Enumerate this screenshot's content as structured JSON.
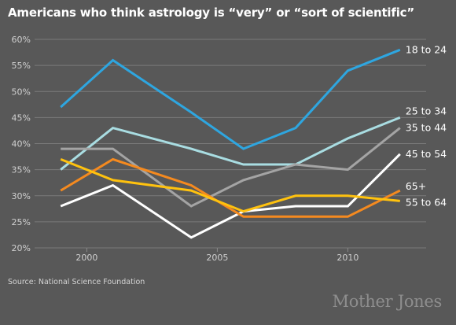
{
  "title": "Americans who think astrology is “very” or “sort of scientific”",
  "source": "Source: National Science Foundation",
  "brand": "Mother Jones",
  "chart_data": {
    "type": "line",
    "title": "Americans who think astrology is “very” or “sort of scientific”",
    "xlabel": "",
    "ylabel": "",
    "x": [
      1999,
      2001,
      2004,
      2006,
      2008,
      2010,
      2012
    ],
    "xlim": [
      1998,
      2013
    ],
    "ylim": [
      20,
      60
    ],
    "x_ticks": [
      "2000",
      "2005",
      "2010"
    ],
    "y_ticks": [
      "20%",
      "25%",
      "30%",
      "35%",
      "40%",
      "45%",
      "50%",
      "55%",
      "60%"
    ],
    "grid": "horizontal",
    "label_placement": "end-of-line",
    "series": [
      {
        "name": "18 to 24",
        "color": "#2ea6e0",
        "values": [
          47,
          56,
          46,
          39,
          43,
          54,
          58
        ]
      },
      {
        "name": "25 to 34",
        "color": "#a9dde2",
        "values": [
          35,
          43,
          39,
          36,
          36,
          41,
          45
        ]
      },
      {
        "name": "35 to 44",
        "color": "#a4a4a4",
        "values": [
          39,
          39,
          28,
          33,
          36,
          35,
          43
        ]
      },
      {
        "name": "45 to 54",
        "color": "#ffffff",
        "values": [
          28,
          32,
          22,
          27,
          28,
          28,
          38
        ]
      },
      {
        "name": "65+",
        "color": "#f58a1f",
        "values": [
          31,
          37,
          32,
          26,
          26,
          26,
          31
        ]
      },
      {
        "name": "55 to 64",
        "color": "#ffc20e",
        "values": [
          37,
          33,
          31,
          27,
          30,
          30,
          29
        ]
      }
    ]
  }
}
